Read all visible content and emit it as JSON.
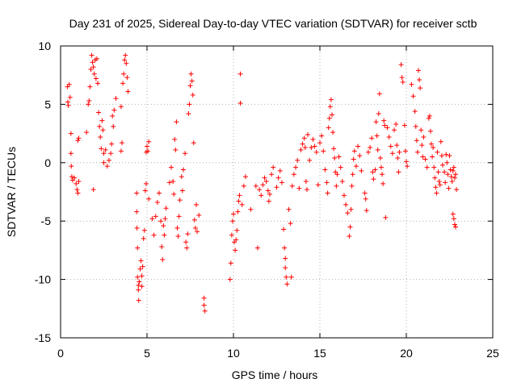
{
  "chart_data": {
    "type": "scatter",
    "title": "Day 231 of 2025, Sidereal Day-to-day VTEC variation (SDTVAR) for receiver sctb",
    "xlabel": "GPS time / hours",
    "ylabel": "SDTVAR / TECUs",
    "xlim": [
      0,
      25
    ],
    "ylim": [
      -15,
      10
    ],
    "xticks": [
      0,
      5,
      10,
      15,
      20,
      25
    ],
    "yticks": [
      -15,
      -10,
      -5,
      0,
      5,
      10
    ],
    "xtick_labels": [
      "0",
      "5",
      "10",
      "15",
      "20",
      "25"
    ],
    "ytick_labels": [
      "-15",
      "-10",
      "-5",
      "0",
      "5",
      "10"
    ],
    "grid": true,
    "marker": "+",
    "color": "#ff0000",
    "series": [
      {
        "name": "SDTVAR",
        "points": [
          [
            0.4,
            6.5
          ],
          [
            0.42,
            5.2
          ],
          [
            0.45,
            4.9
          ],
          [
            0.5,
            6.7
          ],
          [
            0.55,
            5.6
          ],
          [
            0.6,
            2.5
          ],
          [
            0.6,
            0.8
          ],
          [
            0.62,
            -0.3
          ],
          [
            0.65,
            -1.2
          ],
          [
            0.7,
            -1.5
          ],
          [
            0.8,
            -1.3
          ],
          [
            0.9,
            -1.8
          ],
          [
            0.95,
            -2.3
          ],
          [
            1.0,
            -2.6
          ],
          [
            1.05,
            -1.6
          ],
          [
            1.0,
            1.9
          ],
          [
            1.05,
            2.1
          ],
          [
            1.5,
            2.6
          ],
          [
            1.6,
            5.0
          ],
          [
            1.65,
            5.3
          ],
          [
            1.7,
            6.5
          ],
          [
            1.75,
            8.0
          ],
          [
            1.8,
            9.2
          ],
          [
            1.85,
            8.6
          ],
          [
            1.9,
            8.2
          ],
          [
            1.95,
            7.6
          ],
          [
            2.0,
            8.8
          ],
          [
            2.05,
            7.2
          ],
          [
            2.1,
            8.9
          ],
          [
            2.15,
            6.8
          ],
          [
            1.9,
            -2.3
          ],
          [
            2.2,
            4.3
          ],
          [
            2.25,
            3.1
          ],
          [
            2.3,
            2.2
          ],
          [
            2.35,
            1.2
          ],
          [
            2.4,
            3.6
          ],
          [
            2.45,
            2.8
          ],
          [
            2.5,
            0.8
          ],
          [
            2.5,
            0.0
          ],
          [
            2.6,
            1.1
          ],
          [
            2.7,
            -0.3
          ],
          [
            2.8,
            0.2
          ],
          [
            2.9,
            0.8
          ],
          [
            2.95,
            1.6
          ],
          [
            3.0,
            4.0
          ],
          [
            3.05,
            3.1
          ],
          [
            3.1,
            4.5
          ],
          [
            3.2,
            5.5
          ],
          [
            3.5,
            4.8
          ],
          [
            3.55,
            1.7
          ],
          [
            3.5,
            1.0
          ],
          [
            3.6,
            6.8
          ],
          [
            3.65,
            7.6
          ],
          [
            3.7,
            8.8
          ],
          [
            3.75,
            9.2
          ],
          [
            3.8,
            8.5
          ],
          [
            3.85,
            7.3
          ],
          [
            3.9,
            6.1
          ],
          [
            4.4,
            -2.6
          ],
          [
            4.4,
            -4.2
          ],
          [
            4.42,
            -5.6
          ],
          [
            4.45,
            -7.3
          ],
          [
            4.45,
            -9.8
          ],
          [
            4.5,
            -10.5
          ],
          [
            4.5,
            -10.9
          ],
          [
            4.52,
            -11.8
          ],
          [
            4.55,
            -10.2
          ],
          [
            4.6,
            -9.1
          ],
          [
            4.65,
            -8.4
          ],
          [
            4.7,
            -10.6
          ],
          [
            4.7,
            -9.7
          ],
          [
            4.75,
            -8.9
          ],
          [
            4.8,
            -6.5
          ],
          [
            4.85,
            -5.8
          ],
          [
            4.9,
            -2.4
          ],
          [
            4.95,
            -1.8
          ],
          [
            4.95,
            0.9
          ],
          [
            5.0,
            1.4
          ],
          [
            5.05,
            1.0
          ],
          [
            5.1,
            1.8
          ],
          [
            5.1,
            -3.1
          ],
          [
            5.3,
            -4.8
          ],
          [
            5.4,
            -6.2
          ],
          [
            5.5,
            -4.6
          ],
          [
            5.6,
            -3.4
          ],
          [
            5.7,
            -2.6
          ],
          [
            5.8,
            -5.0
          ],
          [
            5.85,
            -7.2
          ],
          [
            5.9,
            -8.3
          ],
          [
            5.95,
            -5.4
          ],
          [
            6.0,
            -6.2
          ],
          [
            6.05,
            -4.8
          ],
          [
            6.1,
            -3.9
          ],
          [
            6.3,
            -1.7
          ],
          [
            6.4,
            -0.4
          ],
          [
            6.5,
            -1.6
          ],
          [
            6.55,
            -2.7
          ],
          [
            6.6,
            2.0
          ],
          [
            6.65,
            1.1
          ],
          [
            6.7,
            3.5
          ],
          [
            6.75,
            -5.6
          ],
          [
            6.8,
            -6.3
          ],
          [
            6.85,
            -4.6
          ],
          [
            6.9,
            -3.2
          ],
          [
            7.0,
            -1.2
          ],
          [
            7.05,
            -2.4
          ],
          [
            7.1,
            -0.6
          ],
          [
            7.2,
            0.8
          ],
          [
            7.25,
            -6.8
          ],
          [
            7.3,
            -7.3
          ],
          [
            7.35,
            -6.1
          ],
          [
            7.4,
            4.2
          ],
          [
            7.45,
            5.0
          ],
          [
            7.5,
            6.6
          ],
          [
            7.55,
            7.6
          ],
          [
            7.6,
            7.0
          ],
          [
            7.65,
            5.8
          ],
          [
            7.7,
            1.7
          ],
          [
            7.75,
            -4.9
          ],
          [
            7.8,
            -5.6
          ],
          [
            7.85,
            -3.6
          ],
          [
            7.9,
            -5.9
          ],
          [
            8.0,
            -4.5
          ],
          [
            8.3,
            -11.6
          ],
          [
            8.35,
            -12.7
          ],
          [
            8.3,
            -12.2
          ],
          [
            9.8,
            -10.0
          ],
          [
            9.85,
            -8.6
          ],
          [
            9.9,
            -6.2
          ],
          [
            9.95,
            -5.0
          ],
          [
            10.0,
            -4.4
          ],
          [
            10.05,
            -6.8
          ],
          [
            10.1,
            -7.5
          ],
          [
            10.15,
            -6.6
          ],
          [
            10.2,
            -5.8
          ],
          [
            10.25,
            -4.2
          ],
          [
            10.3,
            -3.3
          ],
          [
            10.35,
            -2.8
          ],
          [
            10.4,
            7.6
          ],
          [
            10.4,
            5.1
          ],
          [
            10.5,
            -3.6
          ],
          [
            10.6,
            -2.0
          ],
          [
            10.7,
            -1.2
          ],
          [
            11.0,
            -4.0
          ],
          [
            11.3,
            -2.0
          ],
          [
            11.4,
            -7.3
          ],
          [
            11.5,
            -2.3
          ],
          [
            11.6,
            -2.8
          ],
          [
            11.7,
            -1.9
          ],
          [
            11.8,
            -1.3
          ],
          [
            11.9,
            -1.6
          ],
          [
            12.0,
            -2.4
          ],
          [
            12.05,
            -3.3
          ],
          [
            12.1,
            -2.7
          ],
          [
            12.2,
            -1.0
          ],
          [
            12.3,
            -0.4
          ],
          [
            12.5,
            -2.1
          ],
          [
            12.6,
            -1.3
          ],
          [
            12.7,
            -0.7
          ],
          [
            12.8,
            -1.7
          ],
          [
            12.9,
            -5.7
          ],
          [
            12.95,
            -7.3
          ],
          [
            13.0,
            -8.2
          ],
          [
            13.0,
            -9.0
          ],
          [
            13.05,
            -9.8
          ],
          [
            13.1,
            -10.4
          ],
          [
            13.2,
            -4.0
          ],
          [
            13.3,
            -5.2
          ],
          [
            13.35,
            -9.8
          ],
          [
            13.4,
            -2.0
          ],
          [
            13.5,
            -1.0
          ],
          [
            13.6,
            -0.4
          ],
          [
            13.7,
            0.2
          ],
          [
            13.8,
            -2.2
          ],
          [
            13.9,
            1.1
          ],
          [
            14.0,
            1.6
          ],
          [
            14.1,
            2.1
          ],
          [
            14.15,
            1.3
          ],
          [
            14.2,
            -1.6
          ],
          [
            14.25,
            -2.3
          ],
          [
            14.3,
            2.4
          ],
          [
            14.4,
            0.2
          ],
          [
            14.5,
            1.3
          ],
          [
            14.6,
            2.0
          ],
          [
            14.7,
            1.4
          ],
          [
            14.8,
            0.9
          ],
          [
            14.9,
            -1.9
          ],
          [
            15.0,
            1.7
          ],
          [
            15.1,
            2.3
          ],
          [
            15.2,
            1.0
          ],
          [
            15.3,
            -0.6
          ],
          [
            15.4,
            -1.7
          ],
          [
            15.45,
            -2.6
          ],
          [
            15.5,
            3.0
          ],
          [
            15.55,
            3.8
          ],
          [
            15.6,
            4.8
          ],
          [
            15.65,
            5.4
          ],
          [
            15.7,
            4.1
          ],
          [
            15.75,
            2.6
          ],
          [
            15.8,
            1.2
          ],
          [
            15.85,
            0.4
          ],
          [
            15.9,
            -0.8
          ],
          [
            15.95,
            -2.0
          ],
          [
            16.0,
            -1.0
          ],
          [
            16.1,
            0.5
          ],
          [
            16.2,
            -0.4
          ],
          [
            16.3,
            -1.6
          ],
          [
            16.4,
            -2.8
          ],
          [
            16.5,
            -3.6
          ],
          [
            16.6,
            -4.3
          ],
          [
            16.7,
            -6.3
          ],
          [
            16.75,
            -5.5
          ],
          [
            16.8,
            -4.0
          ],
          [
            16.85,
            -2.0
          ],
          [
            16.9,
            -1.0
          ],
          [
            16.95,
            0.3
          ],
          [
            17.0,
            1.0
          ],
          [
            17.1,
            -0.3
          ],
          [
            17.2,
            1.4
          ],
          [
            17.3,
            0.6
          ],
          [
            17.4,
            -0.7
          ],
          [
            17.6,
            -2.6
          ],
          [
            17.65,
            -3.1
          ],
          [
            17.7,
            -4.1
          ],
          [
            17.8,
            0.9
          ],
          [
            17.9,
            1.3
          ],
          [
            18.0,
            2.1
          ],
          [
            18.05,
            -0.8
          ],
          [
            18.1,
            -1.4
          ],
          [
            18.2,
            -0.6
          ],
          [
            18.25,
            3.5
          ],
          [
            18.3,
            2.3
          ],
          [
            18.35,
            1.1
          ],
          [
            18.4,
            4.2
          ],
          [
            18.45,
            5.9
          ],
          [
            18.5,
            0.4
          ],
          [
            18.55,
            -0.4
          ],
          [
            18.6,
            -1.0
          ],
          [
            18.65,
            -1.8
          ],
          [
            18.7,
            3.6
          ],
          [
            18.75,
            3.2
          ],
          [
            18.8,
            -4.7
          ],
          [
            18.9,
            3.0
          ],
          [
            19.0,
            2.2
          ],
          [
            19.1,
            1.4
          ],
          [
            19.2,
            0.8
          ],
          [
            19.3,
            2.8
          ],
          [
            19.4,
            3.3
          ],
          [
            19.45,
            1.5
          ],
          [
            19.5,
            0.4
          ],
          [
            19.55,
            -0.8
          ],
          [
            19.6,
            0.9
          ],
          [
            19.7,
            8.4
          ],
          [
            19.75,
            7.3
          ],
          [
            19.8,
            6.9
          ],
          [
            19.9,
            3.2
          ],
          [
            19.95,
            1.0
          ],
          [
            20.0,
            0.1
          ],
          [
            20.05,
            -0.3
          ],
          [
            20.3,
            6.7
          ],
          [
            20.4,
            5.7
          ],
          [
            20.5,
            4.4
          ],
          [
            20.55,
            3.1
          ],
          [
            20.6,
            1.9
          ],
          [
            20.65,
            0.9
          ],
          [
            20.7,
            7.9
          ],
          [
            20.75,
            7.1
          ],
          [
            20.8,
            6.4
          ],
          [
            20.85,
            2.8
          ],
          [
            20.9,
            1.5
          ],
          [
            20.95,
            0.5
          ],
          [
            21.0,
            2.2
          ],
          [
            21.1,
            0.3
          ],
          [
            21.2,
            -0.4
          ],
          [
            21.3,
            3.8
          ],
          [
            21.35,
            4.0
          ],
          [
            21.4,
            2.7
          ],
          [
            21.45,
            1.6
          ],
          [
            21.5,
            0.5
          ],
          [
            21.55,
            1.3
          ],
          [
            21.6,
            -0.4
          ],
          [
            21.65,
            -1.3
          ],
          [
            21.7,
            -2.1
          ],
          [
            21.75,
            -2.6
          ],
          [
            21.8,
            0.9
          ],
          [
            21.85,
            -0.8
          ],
          [
            21.9,
            -1.6
          ],
          [
            21.95,
            -1.9
          ],
          [
            22.0,
            1.8
          ],
          [
            22.05,
            0.6
          ],
          [
            22.1,
            -0.2
          ],
          [
            22.2,
            -0.8
          ],
          [
            22.25,
            -1.7
          ],
          [
            22.3,
            0.7
          ],
          [
            22.35,
            0.0
          ],
          [
            22.4,
            -1.0
          ],
          [
            22.45,
            -2.2
          ],
          [
            22.5,
            0.6
          ],
          [
            22.55,
            -0.6
          ],
          [
            22.6,
            -1.2
          ],
          [
            22.65,
            -1.6
          ],
          [
            22.7,
            -0.7
          ],
          [
            22.75,
            -0.4
          ],
          [
            22.8,
            -1.3
          ],
          [
            22.85,
            -1.0
          ],
          [
            22.9,
            -2.3
          ],
          [
            22.7,
            -4.4
          ],
          [
            22.75,
            -4.8
          ],
          [
            22.8,
            -5.3
          ],
          [
            22.85,
            -5.5
          ]
        ]
      }
    ]
  }
}
